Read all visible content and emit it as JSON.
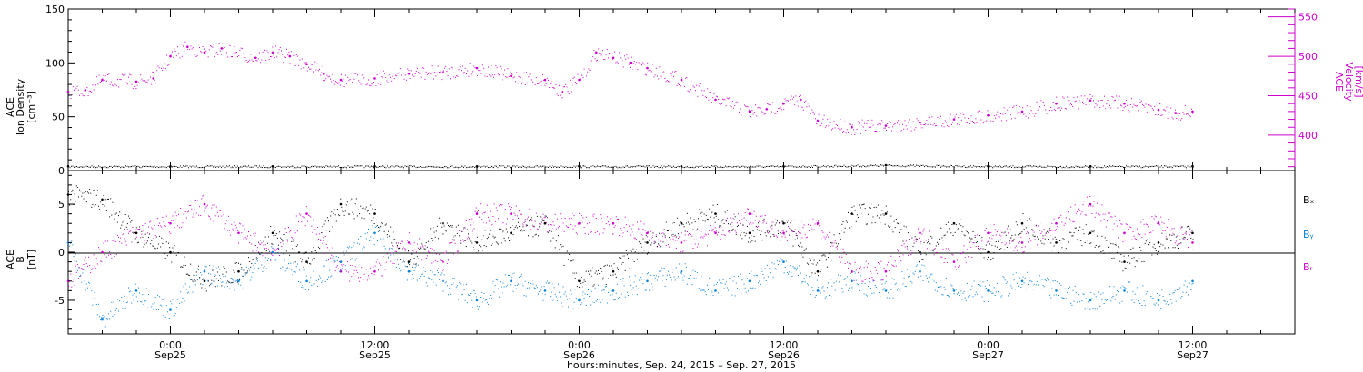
{
  "colors": {
    "axis": "#000000",
    "density": "#000000",
    "velocity": "#cc00cc",
    "bx": "#000000",
    "by": "#0a82d6",
    "bz": "#cc00cc"
  },
  "top_panel": {
    "left_axis_label": [
      "ACE",
      "Ion Density",
      "[cm⁻³]"
    ],
    "right_axis_label": [
      "ACE",
      "Velocity",
      "[km/s]"
    ],
    "left_ticks": [
      "0",
      "50",
      "100",
      "150"
    ],
    "right_ticks": [
      "400",
      "450",
      "500",
      "550"
    ]
  },
  "bottom_panel": {
    "left_axis_label": [
      "ACE",
      "B",
      "[nT]"
    ],
    "left_ticks": [
      "-5",
      "0",
      "5"
    ],
    "legend": [
      "Bₓ",
      "Bᵧ",
      "Bᵣ"
    ]
  },
  "x_axis": {
    "tick_times": [
      "0:00",
      "12:00",
      "0:00",
      "12:00",
      "0:00",
      "12:00"
    ],
    "tick_dates": [
      "Sep25",
      "Sep25",
      "Sep26",
      "Sep26",
      "Sep27",
      "Sep27"
    ],
    "title": "hours:minutes, Sep. 24, 2015 – Sep. 27, 2015"
  },
  "chart_data": [
    {
      "type": "scatter",
      "panel": "top",
      "xlabel": "hours:minutes, Sep. 24, 2015 – Sep. 27, 2015",
      "xlim": [
        "2015-09-24T18:00",
        "2015-09-27T18:00"
      ],
      "ylim_left": [
        0,
        150
      ],
      "ylim_right": [
        355,
        560
      ],
      "series": [
        {
          "name": "Ion Density",
          "axis": "left",
          "x": [
            "2015-09-24T18:00",
            "2015-09-25T00:00",
            "2015-09-25T06:00",
            "2015-09-25T12:00",
            "2015-09-25T18:00",
            "2015-09-26T00:00",
            "2015-09-26T06:00",
            "2015-09-26T12:00",
            "2015-09-26T18:00",
            "2015-09-27T00:00",
            "2015-09-27T06:00",
            "2015-09-27T12:00"
          ],
          "values": [
            4,
            4,
            4,
            4,
            4,
            4,
            4,
            4,
            5,
            4,
            4,
            4
          ]
        },
        {
          "name": "Velocity",
          "axis": "right",
          "x": [
            "2015-09-24T18:00",
            "2015-09-24T19:00",
            "2015-09-24T20:00",
            "2015-09-24T22:00",
            "2015-09-24T23:00",
            "2015-09-25T00:00",
            "2015-09-25T01:00",
            "2015-09-25T02:00",
            "2015-09-25T03:00",
            "2015-09-25T05:00",
            "2015-09-25T06:00",
            "2015-09-25T07:00",
            "2015-09-25T08:00",
            "2015-09-25T09:00",
            "2015-09-25T10:00",
            "2015-09-25T12:00",
            "2015-09-25T14:00",
            "2015-09-25T16:00",
            "2015-09-25T18:00",
            "2015-09-25T20:00",
            "2015-09-25T22:00",
            "2015-09-25T23:00",
            "2015-09-26T00:00",
            "2015-09-26T01:00",
            "2015-09-26T02:00",
            "2015-09-26T03:00",
            "2015-09-26T04:00",
            "2015-09-26T06:00",
            "2015-09-26T08:00",
            "2015-09-26T10:00",
            "2015-09-26T11:00",
            "2015-09-26T12:00",
            "2015-09-26T13:00",
            "2015-09-26T14:00",
            "2015-09-26T16:00",
            "2015-09-26T18:00",
            "2015-09-26T20:00",
            "2015-09-26T22:00",
            "2015-09-27T00:00",
            "2015-09-27T02:00",
            "2015-09-27T04:00",
            "2015-09-27T06:00",
            "2015-09-27T08:00",
            "2015-09-27T10:00",
            "2015-09-27T11:00",
            "2015-09-27T12:00"
          ],
          "values": [
            455,
            457,
            470,
            468,
            472,
            500,
            512,
            505,
            510,
            498,
            505,
            500,
            490,
            478,
            470,
            472,
            478,
            480,
            485,
            475,
            470,
            455,
            470,
            505,
            498,
            492,
            485,
            470,
            445,
            430,
            433,
            440,
            445,
            418,
            410,
            412,
            416,
            420,
            425,
            430,
            440,
            444,
            440,
            432,
            428,
            430
          ]
        }
      ]
    },
    {
      "type": "scatter",
      "panel": "bottom",
      "ylabel": "B [nT]",
      "xlim": [
        "2015-09-24T18:00",
        "2015-09-27T18:00"
      ],
      "ylim": [
        -8.5,
        8.5
      ],
      "series": [
        {
          "name": "Bₓ",
          "x": [
            "2015-09-24T18:00",
            "2015-09-24T20:00",
            "2015-09-24T22:00",
            "2015-09-25T00:00",
            "2015-09-25T02:00",
            "2015-09-25T04:00",
            "2015-09-25T06:00",
            "2015-09-25T08:00",
            "2015-09-25T10:00",
            "2015-09-25T12:00",
            "2015-09-25T14:00",
            "2015-09-25T16:00",
            "2015-09-25T18:00",
            "2015-09-25T20:00",
            "2015-09-25T22:00",
            "2015-09-26T00:00",
            "2015-09-26T02:00",
            "2015-09-26T04:00",
            "2015-09-26T06:00",
            "2015-09-26T08:00",
            "2015-09-26T10:00",
            "2015-09-26T12:00",
            "2015-09-26T14:00",
            "2015-09-26T16:00",
            "2015-09-26T18:00",
            "2015-09-26T20:00",
            "2015-09-26T22:00",
            "2015-09-27T00:00",
            "2015-09-27T02:00",
            "2015-09-27T04:00",
            "2015-09-27T06:00",
            "2015-09-27T08:00",
            "2015-09-27T10:00",
            "2015-09-27T12:00"
          ],
          "values": [
            6,
            5.5,
            2,
            0,
            -3,
            -2,
            2,
            -1,
            5,
            4,
            -1,
            3,
            1,
            2,
            3,
            -3,
            -2,
            1,
            3,
            4,
            2,
            3,
            -2,
            4,
            4,
            0,
            3,
            0,
            3,
            1,
            2,
            -1,
            1,
            2
          ]
        },
        {
          "name": "Bᵧ",
          "x": [
            "2015-09-24T18:00",
            "2015-09-24T20:00",
            "2015-09-24T22:00",
            "2015-09-25T00:00",
            "2015-09-25T02:00",
            "2015-09-25T04:00",
            "2015-09-25T06:00",
            "2015-09-25T08:00",
            "2015-09-25T10:00",
            "2015-09-25T12:00",
            "2015-09-25T14:00",
            "2015-09-25T16:00",
            "2015-09-25T18:00",
            "2015-09-25T20:00",
            "2015-09-25T22:00",
            "2015-09-26T00:00",
            "2015-09-26T02:00",
            "2015-09-26T04:00",
            "2015-09-26T06:00",
            "2015-09-26T08:00",
            "2015-09-26T10:00",
            "2015-09-26T12:00",
            "2015-09-26T14:00",
            "2015-09-26T16:00",
            "2015-09-26T18:00",
            "2015-09-26T20:00",
            "2015-09-26T22:00",
            "2015-09-27T00:00",
            "2015-09-27T02:00",
            "2015-09-27T04:00",
            "2015-09-27T06:00",
            "2015-09-27T08:00",
            "2015-09-27T10:00",
            "2015-09-27T12:00"
          ],
          "values": [
            1,
            -7,
            -4,
            -6,
            -2,
            -3,
            0,
            -3,
            -1,
            2,
            -2,
            -3,
            -5,
            -3,
            -4,
            -5,
            -4,
            -3,
            -2,
            -4,
            -3,
            -1,
            -4,
            -3,
            -4,
            -2,
            -4,
            -4,
            -3,
            -4,
            -5,
            -4,
            -5,
            -3
          ]
        },
        {
          "name": "Bᵣ",
          "x": [
            "2015-09-24T18:00",
            "2015-09-24T20:00",
            "2015-09-24T22:00",
            "2015-09-25T00:00",
            "2015-09-25T02:00",
            "2015-09-25T04:00",
            "2015-09-25T06:00",
            "2015-09-25T08:00",
            "2015-09-25T10:00",
            "2015-09-25T12:00",
            "2015-09-25T14:00",
            "2015-09-25T16:00",
            "2015-09-25T18:00",
            "2015-09-25T20:00",
            "2015-09-25T22:00",
            "2015-09-26T00:00",
            "2015-09-26T02:00",
            "2015-09-26T04:00",
            "2015-09-26T06:00",
            "2015-09-26T08:00",
            "2015-09-26T10:00",
            "2015-09-26T12:00",
            "2015-09-26T14:00",
            "2015-09-26T16:00",
            "2015-09-26T18:00",
            "2015-09-26T20:00",
            "2015-09-26T22:00",
            "2015-09-27T00:00",
            "2015-09-27T02:00",
            "2015-09-27T04:00",
            "2015-09-27T06:00",
            "2015-09-27T08:00",
            "2015-09-27T10:00",
            "2015-09-27T12:00"
          ],
          "values": [
            -3,
            0,
            2,
            3,
            5,
            2,
            0,
            4,
            -2,
            -2,
            1,
            -1,
            4,
            4,
            3,
            3,
            3,
            2,
            1,
            2,
            4,
            2,
            3,
            -2,
            -2,
            2,
            -1,
            2,
            1,
            3,
            5,
            2,
            3,
            1
          ]
        }
      ]
    }
  ]
}
